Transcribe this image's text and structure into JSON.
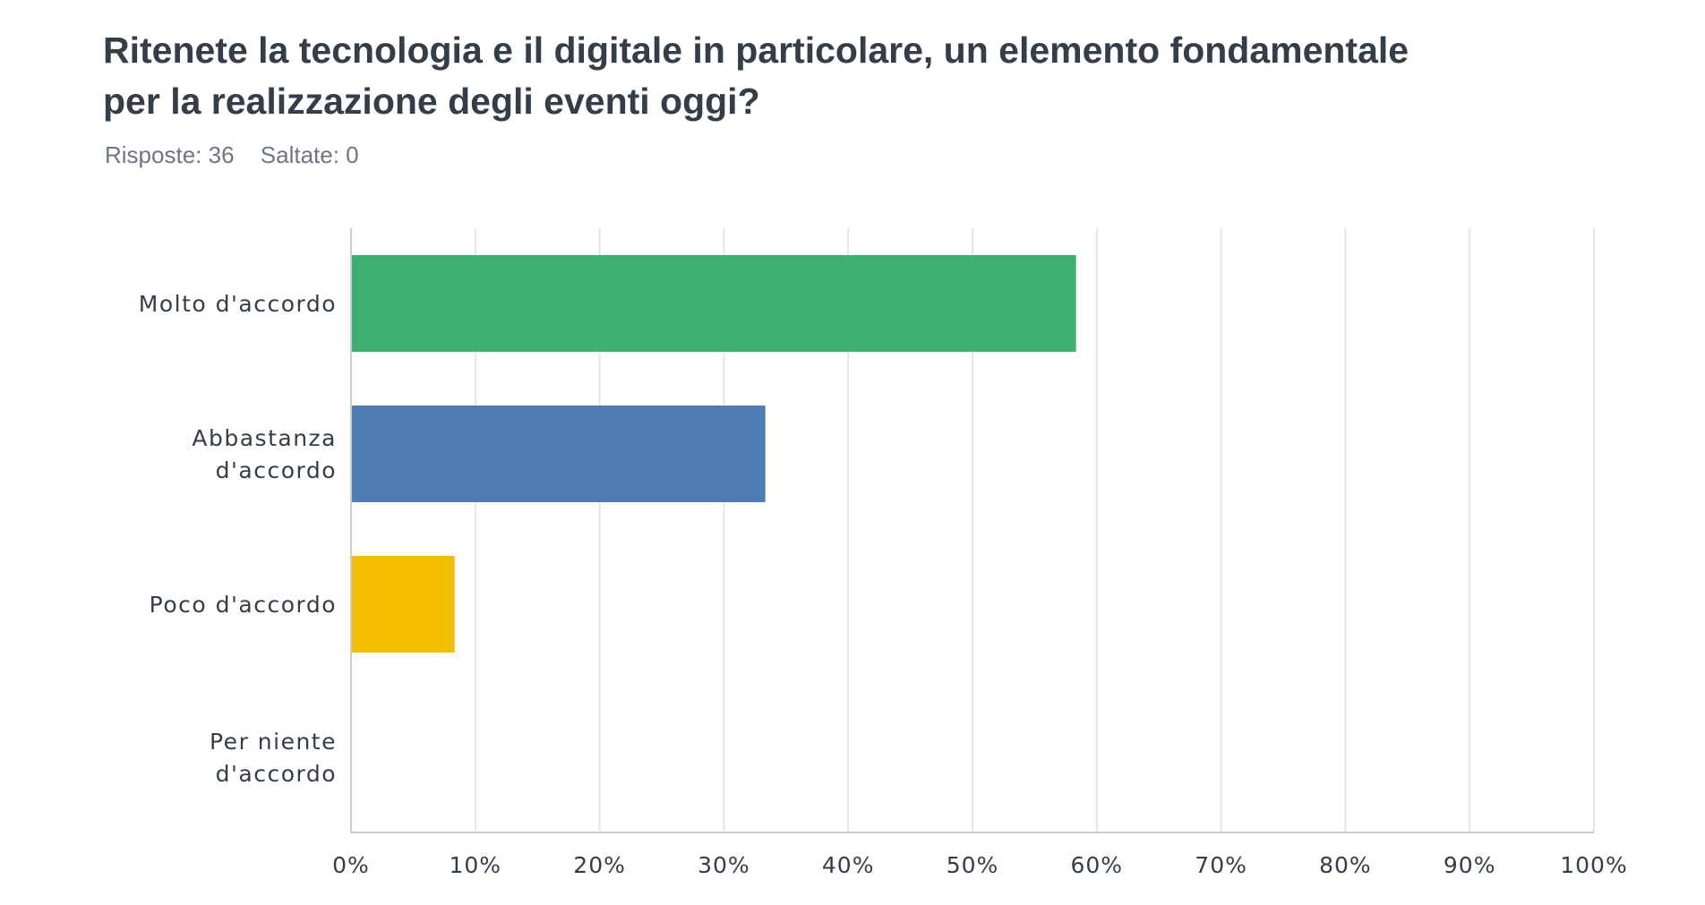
{
  "header": {
    "question": "Ritenete la tecnologia e il digitale in particolare, un elemento fondamentale per la realizzazione degli eventi oggi?",
    "responses": "Risposte: 36",
    "skipped": "Saltate: 0"
  },
  "chart_data": {
    "type": "bar",
    "orientation": "horizontal",
    "categories": [
      [
        "Molto d'accordo"
      ],
      [
        "Abbastanza",
        "d'accordo"
      ],
      [
        "Poco d'accordo"
      ],
      [
        "Per niente",
        "d'accordo"
      ]
    ],
    "values": [
      58.33,
      33.33,
      8.33,
      0
    ],
    "colors": [
      "#3bb071",
      "#4e7db5",
      "#f4be00",
      "#9b59b6"
    ],
    "xlim": [
      0,
      100
    ],
    "xticks": [
      "0%",
      "10%",
      "20%",
      "30%",
      "40%",
      "50%",
      "60%",
      "70%",
      "80%",
      "90%",
      "100%"
    ],
    "grid": true,
    "title": "",
    "xlabel": "",
    "ylabel": ""
  }
}
